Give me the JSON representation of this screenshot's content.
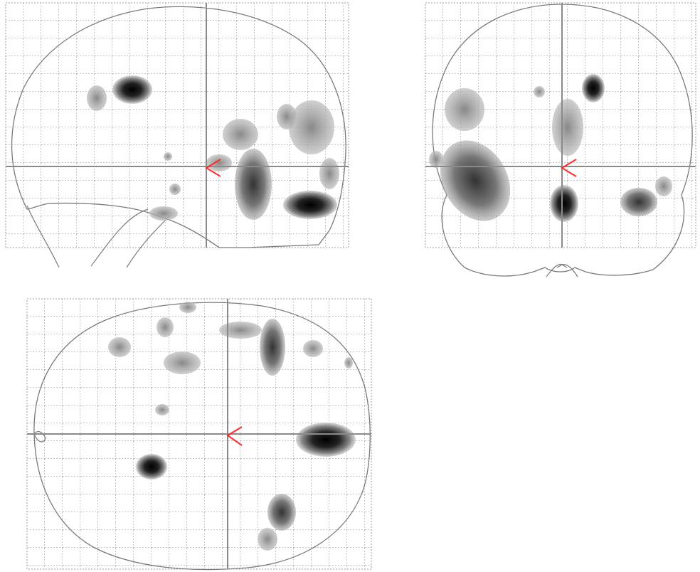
{
  "figure": {
    "views": [
      {
        "id": "sagittal",
        "label": "",
        "crosshair": "present",
        "cursor_color": "#ff2a2a"
      },
      {
        "id": "coronal",
        "label": "",
        "crosshair": "present",
        "cursor_color": "#ff2a2a"
      },
      {
        "id": "axial",
        "label": "",
        "crosshair": "present",
        "cursor_color": "#ff2a2a"
      }
    ],
    "colors": {
      "grid": "#9a9a9a",
      "outline": "#7a7a7a",
      "crosshair": "#8a8a8a",
      "cursor": "#ff2a2a",
      "blob_dark": "#000000",
      "blob_light": "#b8b8b8"
    }
  }
}
